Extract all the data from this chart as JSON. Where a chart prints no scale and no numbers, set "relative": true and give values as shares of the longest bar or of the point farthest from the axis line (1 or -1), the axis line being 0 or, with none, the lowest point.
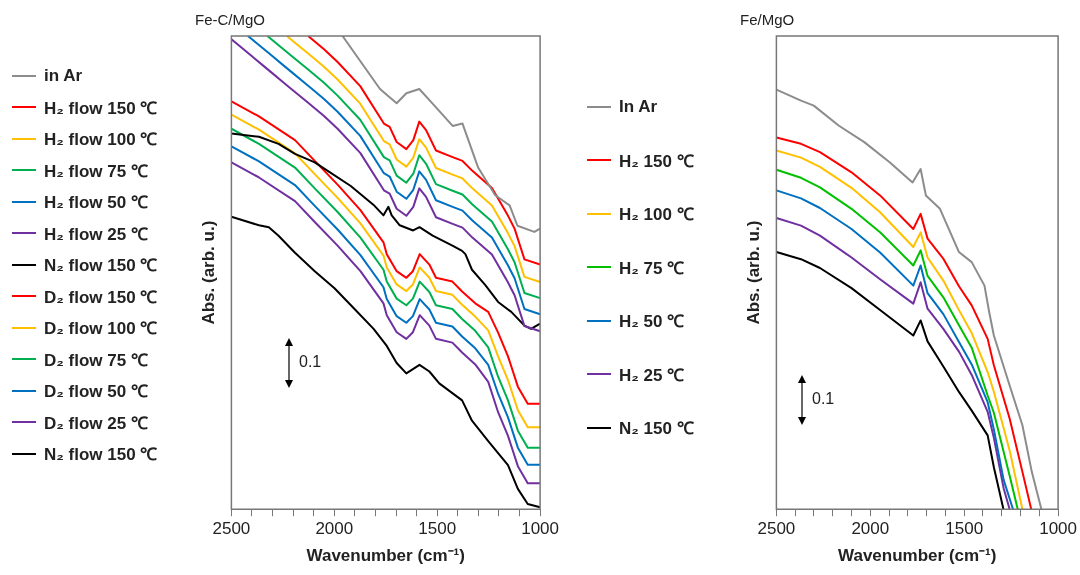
{
  "chart_data": [
    {
      "type": "line",
      "title": "Fe-C/MgO",
      "xlabel": "Wavenumber (cm⁻¹)",
      "ylabel": "Abs. (arb. u.)",
      "relative": true,
      "legend": "left",
      "marker": "none",
      "annotations": [
        "0.1"
      ],
      "xlim": [
        2500,
        1000
      ],
      "xticks": [
        {
          "value": 2500,
          "label": "2500"
        },
        {
          "value": 2400,
          "label": null
        },
        {
          "value": 2300,
          "label": null
        },
        {
          "value": 2200,
          "label": null
        },
        {
          "value": 2100,
          "label": null
        },
        {
          "value": 2000,
          "label": "2000"
        },
        {
          "value": 1900,
          "label": null
        },
        {
          "value": 1800,
          "label": null
        },
        {
          "value": 1700,
          "label": null
        },
        {
          "value": 1600,
          "label": null
        },
        {
          "value": 1500,
          "label": "1500"
        },
        {
          "value": 1400,
          "label": null
        },
        {
          "value": 1300,
          "label": null
        },
        {
          "value": 1200,
          "label": null
        },
        {
          "value": 1100,
          "label": null
        },
        {
          "value": 1000,
          "label": "1000"
        }
      ],
      "series": [
        {
          "name": "in Ar",
          "color": "#8c8c8c",
          "x": [
            1960,
            1778,
            1697,
            1650,
            1587,
            1520,
            1425,
            1377,
            1301,
            1219,
            1148,
            1110,
            1028,
            1000
          ],
          "values": [
            1.0,
            0.888,
            0.858,
            0.879,
            0.888,
            0.856,
            0.81,
            0.815,
            0.722,
            0.664,
            0.642,
            0.599,
            0.586,
            0.593
          ]
        },
        {
          "name": "H₂ flow 150 ℃",
          "color": "#ff0000",
          "x": [
            2127,
            2050,
            1984,
            1874,
            1759,
            1731,
            1697,
            1650,
            1616,
            1587,
            1554,
            1506,
            1425,
            1377,
            1329,
            1234,
            1157,
            1124,
            1076,
            1000
          ],
          "values": [
            1.0,
            0.972,
            0.945,
            0.894,
            0.815,
            0.808,
            0.776,
            0.761,
            0.78,
            0.819,
            0.801,
            0.758,
            0.744,
            0.736,
            0.715,
            0.679,
            0.621,
            0.593,
            0.528,
            0.517
          ]
        },
        {
          "name": "H₂ flow 100 ℃",
          "color": "#ffc000",
          "x": [
            2230,
            2200,
            2127,
            2050,
            1984,
            1874,
            1759,
            1731,
            1697,
            1650,
            1616,
            1587,
            1554,
            1506,
            1425,
            1377,
            1329,
            1234,
            1157,
            1124,
            1076,
            1000
          ],
          "values": [
            1.0,
            0.989,
            0.963,
            0.935,
            0.908,
            0.857,
            0.778,
            0.771,
            0.739,
            0.724,
            0.743,
            0.782,
            0.764,
            0.721,
            0.707,
            0.699,
            0.678,
            0.642,
            0.584,
            0.556,
            0.491,
            0.48
          ]
        },
        {
          "name": "H₂ flow 75 ℃",
          "color": "#00b050",
          "x": [
            2325,
            2300,
            2250,
            2200,
            2127,
            2050,
            1984,
            1874,
            1759,
            1731,
            1697,
            1650,
            1616,
            1587,
            1554,
            1506,
            1425,
            1377,
            1329,
            1234,
            1157,
            1124,
            1076,
            1000
          ],
          "values": [
            1.0,
            0.991,
            0.973,
            0.955,
            0.929,
            0.901,
            0.874,
            0.823,
            0.744,
            0.737,
            0.705,
            0.69,
            0.709,
            0.748,
            0.73,
            0.687,
            0.673,
            0.665,
            0.644,
            0.608,
            0.55,
            0.522,
            0.457,
            0.446
          ]
        },
        {
          "name": "H₂ flow 50 ℃",
          "color": "#0070c0",
          "x": [
            2420,
            2400,
            2350,
            2300,
            2250,
            2200,
            2127,
            2050,
            1984,
            1874,
            1759,
            1731,
            1697,
            1650,
            1616,
            1587,
            1554,
            1506,
            1425,
            1377,
            1329,
            1234,
            1157,
            1124,
            1076,
            1000
          ],
          "values": [
            1.0,
            0.993,
            0.975,
            0.957,
            0.939,
            0.921,
            0.895,
            0.867,
            0.84,
            0.789,
            0.71,
            0.703,
            0.671,
            0.656,
            0.675,
            0.714,
            0.696,
            0.653,
            0.639,
            0.631,
            0.61,
            0.574,
            0.516,
            0.488,
            0.423,
            0.412
          ]
        },
        {
          "name": "H₂ flow 25 ℃",
          "color": "#7030a0",
          "x": [
            2500,
            2460,
            2400,
            2350,
            2300,
            2250,
            2200,
            2127,
            2050,
            1984,
            1874,
            1759,
            1731,
            1697,
            1650,
            1616,
            1587,
            1554,
            1506,
            1425,
            1377,
            1329,
            1234,
            1157,
            1124,
            1076,
            1000
          ],
          "values": [
            0.993,
            0.979,
            0.957,
            0.939,
            0.921,
            0.903,
            0.885,
            0.859,
            0.831,
            0.804,
            0.753,
            0.674,
            0.667,
            0.635,
            0.62,
            0.639,
            0.678,
            0.66,
            0.617,
            0.603,
            0.595,
            0.574,
            0.538,
            0.48,
            0.452,
            0.387,
            0.376
          ]
        },
        {
          "name": "N₂ flow 150 ℃",
          "color": "#000000",
          "x": [
            2500,
            2366,
            2271,
            2191,
            2095,
            2032,
            1920,
            1809,
            1761,
            1737,
            1721,
            1682,
            1617,
            1586,
            1522,
            1426,
            1379,
            1363,
            1331,
            1267,
            1204,
            1140,
            1076,
            1044,
            1000
          ],
          "values": [
            0.794,
            0.787,
            0.772,
            0.751,
            0.733,
            0.715,
            0.683,
            0.643,
            0.621,
            0.639,
            0.621,
            0.6,
            0.589,
            0.596,
            0.578,
            0.557,
            0.546,
            0.539,
            0.506,
            0.474,
            0.438,
            0.417,
            0.388,
            0.381,
            0.392
          ]
        },
        {
          "name": "D₂ flow 150 ℃",
          "color": "#ff0000",
          "x": [
            2500,
            2366,
            2191,
            2095,
            1984,
            1873,
            1761,
            1745,
            1697,
            1650,
            1618,
            1585,
            1538,
            1506,
            1426,
            1379,
            1315,
            1252,
            1204,
            1156,
            1108,
            1060,
            1000
          ],
          "values": [
            0.862,
            0.83,
            0.78,
            0.736,
            0.686,
            0.632,
            0.564,
            0.539,
            0.503,
            0.489,
            0.503,
            0.539,
            0.517,
            0.489,
            0.481,
            0.46,
            0.435,
            0.417,
            0.373,
            0.323,
            0.259,
            0.223,
            0.223
          ]
        },
        {
          "name": "D₂ flow 100 ℃",
          "color": "#ffc000",
          "x": [
            2500,
            2366,
            2191,
            2095,
            1984,
            1873,
            1761,
            1745,
            1697,
            1650,
            1618,
            1585,
            1538,
            1506,
            1426,
            1379,
            1315,
            1252,
            1204,
            1156,
            1108,
            1060,
            1000
          ],
          "values": [
            0.834,
            0.802,
            0.752,
            0.708,
            0.658,
            0.604,
            0.536,
            0.511,
            0.475,
            0.461,
            0.475,
            0.511,
            0.489,
            0.461,
            0.453,
            0.432,
            0.407,
            0.378,
            0.323,
            0.273,
            0.209,
            0.173,
            0.173
          ]
        },
        {
          "name": "D₂ flow 75 ℃",
          "color": "#00b050",
          "x": [
            2500,
            2366,
            2191,
            2095,
            1984,
            1873,
            1761,
            1745,
            1697,
            1650,
            1618,
            1585,
            1538,
            1506,
            1426,
            1379,
            1315,
            1252,
            1204,
            1156,
            1108,
            1060,
            1000
          ],
          "values": [
            0.804,
            0.772,
            0.722,
            0.678,
            0.628,
            0.574,
            0.506,
            0.481,
            0.445,
            0.431,
            0.445,
            0.481,
            0.459,
            0.431,
            0.423,
            0.402,
            0.377,
            0.342,
            0.28,
            0.23,
            0.166,
            0.13,
            0.13
          ]
        },
        {
          "name": "D₂ flow 50 ℃",
          "color": "#0070c0",
          "x": [
            2500,
            2366,
            2191,
            2095,
            1984,
            1873,
            1761,
            1745,
            1697,
            1650,
            1618,
            1585,
            1538,
            1506,
            1426,
            1379,
            1315,
            1252,
            1204,
            1156,
            1108,
            1060,
            1000
          ],
          "values": [
            0.767,
            0.735,
            0.685,
            0.641,
            0.591,
            0.537,
            0.469,
            0.444,
            0.408,
            0.394,
            0.408,
            0.444,
            0.422,
            0.394,
            0.386,
            0.365,
            0.34,
            0.305,
            0.244,
            0.194,
            0.13,
            0.094,
            0.094
          ]
        },
        {
          "name": "D₂ flow 25 ℃",
          "color": "#7030a0",
          "x": [
            2500,
            2366,
            2191,
            2095,
            1984,
            1873,
            1761,
            1745,
            1697,
            1650,
            1618,
            1585,
            1538,
            1506,
            1426,
            1379,
            1315,
            1252,
            1204,
            1156,
            1108,
            1060,
            1000
          ],
          "values": [
            0.733,
            0.701,
            0.651,
            0.607,
            0.557,
            0.503,
            0.435,
            0.41,
            0.374,
            0.36,
            0.374,
            0.41,
            0.388,
            0.36,
            0.352,
            0.331,
            0.306,
            0.269,
            0.205,
            0.155,
            0.091,
            0.055,
            0.055
          ]
        },
        {
          "name": "N₂ flow 150 ℃",
          "color": "#000000",
          "x": [
            2500,
            2366,
            2318,
            2271,
            2191,
            2095,
            1999,
            1904,
            1809,
            1745,
            1697,
            1650,
            1586,
            1538,
            1490,
            1379,
            1331,
            1252,
            1156,
            1108,
            1060,
            1000
          ],
          "values": [
            0.618,
            0.6,
            0.596,
            0.578,
            0.542,
            0.503,
            0.467,
            0.424,
            0.381,
            0.345,
            0.309,
            0.287,
            0.305,
            0.291,
            0.266,
            0.23,
            0.187,
            0.144,
            0.093,
            0.043,
            0.011,
            0.004
          ]
        }
      ]
    },
    {
      "type": "line",
      "title": "Fe/MgO",
      "xlabel": "Wavenumber (cm⁻¹)",
      "ylabel": "Abs. (arb. u.)",
      "relative": true,
      "legend": "left",
      "marker": "none",
      "annotations": [
        "0.1"
      ],
      "xlim": [
        2500,
        1000
      ],
      "xticks": [
        {
          "value": 2500,
          "label": "2500"
        },
        {
          "value": 2400,
          "label": null
        },
        {
          "value": 2300,
          "label": null
        },
        {
          "value": 2200,
          "label": null
        },
        {
          "value": 2100,
          "label": null
        },
        {
          "value": 2000,
          "label": "2000"
        },
        {
          "value": 1900,
          "label": null
        },
        {
          "value": 1800,
          "label": null
        },
        {
          "value": 1700,
          "label": null
        },
        {
          "value": 1600,
          "label": null
        },
        {
          "value": 1500,
          "label": "1500"
        },
        {
          "value": 1400,
          "label": null
        },
        {
          "value": 1300,
          "label": null
        },
        {
          "value": 1200,
          "label": null
        },
        {
          "value": 1100,
          "label": null
        },
        {
          "value": 1000,
          "label": "1000"
        }
      ],
      "series": [
        {
          "name": "In Ar",
          "color": "#8c8c8c",
          "x": [
            2500,
            2369,
            2301,
            2167,
            2032,
            1897,
            1775,
            1732,
            1704,
            1629,
            1528,
            1460,
            1392,
            1367,
            1342,
            1258,
            1190,
            1140,
            1089
          ],
          "values": [
            1.0,
            0.974,
            0.962,
            0.914,
            0.875,
            0.827,
            0.779,
            0.811,
            0.748,
            0.716,
            0.613,
            0.589,
            0.533,
            0.47,
            0.414,
            0.295,
            0.2,
            0.089,
            0
          ]
        },
        {
          "name": "H₂ 150 ℃",
          "color": "#ff0000",
          "x": [
            2500,
            2369,
            2268,
            2100,
            1948,
            1771,
            1732,
            1695,
            1611,
            1527,
            1460,
            1375,
            1342,
            1258,
            1190,
            1143
          ],
          "values": [
            0.886,
            0.871,
            0.851,
            0.803,
            0.748,
            0.668,
            0.704,
            0.645,
            0.597,
            0.531,
            0.486,
            0.406,
            0.343,
            0.216,
            0.089,
            0
          ]
        },
        {
          "name": "H₂ 100 ℃",
          "color": "#ffc000",
          "x": [
            2500,
            2369,
            2268,
            2100,
            1948,
            1771,
            1732,
            1695,
            1611,
            1527,
            1460,
            1375,
            1342,
            1258,
            1190
          ],
          "values": [
            0.855,
            0.838,
            0.816,
            0.766,
            0.708,
            0.625,
            0.66,
            0.6,
            0.545,
            0.474,
            0.42,
            0.327,
            0.28,
            0.14,
            0
          ]
        },
        {
          "name": "H₂ 75 ℃",
          "color": "#00c000",
          "x": [
            2500,
            2369,
            2268,
            2100,
            1948,
            1771,
            1732,
            1695,
            1611,
            1527,
            1460,
            1375,
            1342,
            1258,
            1215
          ],
          "values": [
            0.809,
            0.79,
            0.767,
            0.716,
            0.66,
            0.581,
            0.617,
            0.556,
            0.505,
            0.438,
            0.385,
            0.271,
            0.23,
            0.08,
            0
          ]
        },
        {
          "name": "H₂ 50 ℃",
          "color": "#0070c0",
          "x": [
            2500,
            2369,
            2268,
            2100,
            1948,
            1771,
            1732,
            1695,
            1611,
            1527,
            1460,
            1375,
            1342,
            1290,
            1240
          ],
          "values": [
            0.76,
            0.741,
            0.718,
            0.668,
            0.612,
            0.533,
            0.581,
            0.515,
            0.465,
            0.398,
            0.345,
            0.255,
            0.19,
            0.07,
            0
          ]
        },
        {
          "name": "H₂ 25 ℃",
          "color": "#7030a0",
          "x": [
            2500,
            2369,
            2268,
            2100,
            1948,
            1771,
            1732,
            1695,
            1611,
            1527,
            1460,
            1375,
            1342,
            1290,
            1258
          ],
          "values": [
            0.694,
            0.676,
            0.652,
            0.6,
            0.548,
            0.49,
            0.541,
            0.478,
            0.43,
            0.375,
            0.32,
            0.232,
            0.17,
            0.05,
            0
          ]
        },
        {
          "name": "N₂ 150 ℃",
          "color": "#000000",
          "x": [
            2500,
            2369,
            2268,
            2100,
            1948,
            1771,
            1732,
            1695,
            1611,
            1527,
            1460,
            1375,
            1342,
            1291
          ],
          "values": [
            0.613,
            0.596,
            0.575,
            0.527,
            0.475,
            0.414,
            0.45,
            0.4,
            0.34,
            0.279,
            0.235,
            0.176,
            0.1,
            0
          ]
        }
      ]
    }
  ]
}
